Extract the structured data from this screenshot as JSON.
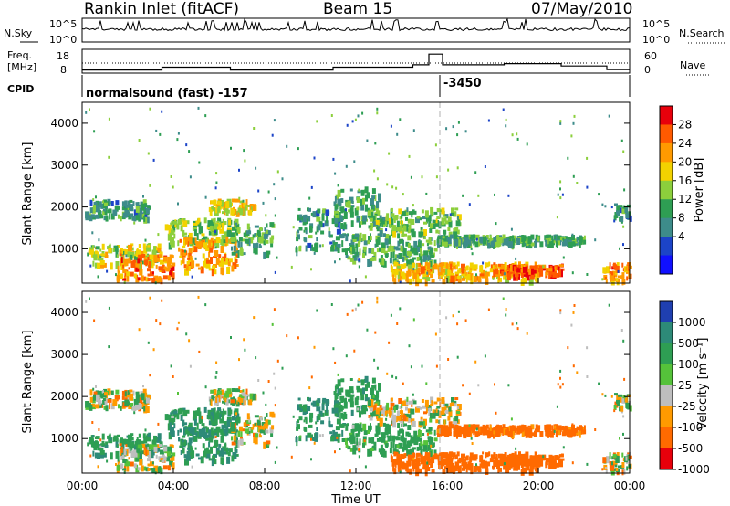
{
  "header": {
    "radar": "Rankin Inlet (fitACF)",
    "beam": "Beam 15",
    "date": "07/May/2010"
  },
  "noise_panel": {
    "left_label": "N.Sky",
    "right_label": "N.Search",
    "left_ticks": [
      "10^5",
      "10^0"
    ],
    "right_ticks": [
      "10^5",
      "10^0"
    ]
  },
  "freq_panel": {
    "left_label_1": "Freq.",
    "left_label_2": "[MHz]",
    "right_label": "Nave",
    "left_ticks": [
      "18",
      "8"
    ],
    "right_ticks": [
      "60",
      "0"
    ]
  },
  "cpid": {
    "label": "CPID",
    "program": "normalsound (fast) -157",
    "change": "-3450"
  },
  "power_panel": {
    "ylabel": "Slant Range [km]"
  },
  "velocity_panel": {
    "ylabel": "Slant Range [km]"
  },
  "power_colorbar": {
    "label": "Power [dB]",
    "ticks": [
      "28",
      "24",
      "20",
      "16",
      "12",
      "8",
      "4"
    ],
    "colors": [
      "#e8000b",
      "#ff5a00",
      "#ff9a00",
      "#f2d200",
      "#8ccf3c",
      "#2e9e53",
      "#3d8c8a",
      "#1c44c8",
      "#1010ff"
    ]
  },
  "velocity_colorbar": {
    "label": "Velocity [m s⁻¹]",
    "ticks": [
      "1000",
      "500",
      "100",
      "25",
      "-25",
      "-100",
      "-500",
      "-1000"
    ],
    "colors": [
      "#1f3fb0",
      "#2d8a78",
      "#2e9e53",
      "#55c23a",
      "#bebebe",
      "#ff9a00",
      "#ff6a00",
      "#e8000b"
    ]
  },
  "chart_data": {
    "type": "heatmap",
    "xlabel": "Time UT",
    "ylabel": "Slant Range [km]",
    "x_ticks": [
      "00:00",
      "04:00",
      "08:00",
      "12:00",
      "16:00",
      "20:00",
      "00:00"
    ],
    "x_range_hours": [
      0,
      24
    ],
    "y_ticks": [
      1000,
      2000,
      3000,
      4000
    ],
    "ylim": [
      180,
      4500
    ],
    "power_regions": [
      {
        "t0": 0.1,
        "t1": 2.9,
        "r0": 1750,
        "r1": 2200,
        "db": 10
      },
      {
        "t0": 0.2,
        "t1": 3.4,
        "r0": 650,
        "r1": 1150,
        "db": 18
      },
      {
        "t0": 1.5,
        "t1": 4.0,
        "r0": 300,
        "r1": 900,
        "db": 26
      },
      {
        "t0": 3.6,
        "t1": 6.8,
        "r0": 1150,
        "r1": 1750,
        "db": 16
      },
      {
        "t0": 4.2,
        "t1": 6.8,
        "r0": 500,
        "r1": 1300,
        "db": 24
      },
      {
        "t0": 5.5,
        "t1": 7.5,
        "r0": 1900,
        "r1": 2200,
        "db": 20
      },
      {
        "t0": 6.5,
        "t1": 8.3,
        "r0": 900,
        "r1": 1650,
        "db": 12
      },
      {
        "t0": 9.3,
        "t1": 11.5,
        "r0": 1000,
        "r1": 2000,
        "db": 10
      },
      {
        "t0": 11.0,
        "t1": 13.0,
        "r0": 1600,
        "r1": 2500,
        "db": 12
      },
      {
        "t0": 11.5,
        "t1": 15.5,
        "r0": 700,
        "r1": 1400,
        "db": 13
      },
      {
        "t0": 12.5,
        "t1": 16.5,
        "r0": 1400,
        "r1": 2000,
        "db": 14
      },
      {
        "t0": 13.5,
        "t1": 20.0,
        "r0": 280,
        "r1": 700,
        "db": 22
      },
      {
        "t0": 15.5,
        "t1": 22.0,
        "r0": 1150,
        "r1": 1350,
        "db": 12
      },
      {
        "t0": 18.0,
        "t1": 21.0,
        "r0": 400,
        "r1": 650,
        "db": 28
      },
      {
        "t0": 22.8,
        "t1": 24.0,
        "r0": 200,
        "r1": 700,
        "db": 26
      },
      {
        "t0": 23.3,
        "t1": 24.0,
        "r0": 1750,
        "r1": 2100,
        "db": 10
      }
    ],
    "velocity_regions": [
      {
        "t0": 0.1,
        "t1": 2.9,
        "r0": 1750,
        "r1": 2200,
        "v": 0
      },
      {
        "t0": 0.2,
        "t1": 3.4,
        "r0": 650,
        "r1": 1150,
        "v": 250
      },
      {
        "t0": 1.5,
        "t1": 4.0,
        "r0": 300,
        "r1": 900,
        "v": 0
      },
      {
        "t0": 3.6,
        "t1": 6.8,
        "r0": 1150,
        "r1": 1750,
        "v": 250
      },
      {
        "t0": 4.2,
        "t1": 6.8,
        "r0": 500,
        "r1": 1300,
        "v": 300
      },
      {
        "t0": 5.5,
        "t1": 7.5,
        "r0": 1900,
        "r1": 2200,
        "v": 0
      },
      {
        "t0": 6.5,
        "t1": 8.3,
        "r0": 900,
        "r1": 1650,
        "v": 0
      },
      {
        "t0": 9.3,
        "t1": 11.5,
        "r0": 1000,
        "r1": 2000,
        "v": 300
      },
      {
        "t0": 11.0,
        "t1": 13.0,
        "r0": 1600,
        "r1": 2500,
        "v": 200
      },
      {
        "t0": 11.5,
        "t1": 15.5,
        "r0": 700,
        "r1": 1400,
        "v": 150
      },
      {
        "t0": 12.5,
        "t1": 16.5,
        "r0": 1400,
        "r1": 2000,
        "v": 0
      },
      {
        "t0": 13.5,
        "t1": 20.0,
        "r0": 280,
        "r1": 700,
        "v": -300
      },
      {
        "t0": 15.5,
        "t1": 22.0,
        "r0": 1150,
        "r1": 1350,
        "v": -200
      },
      {
        "t0": 18.0,
        "t1": 21.0,
        "r0": 400,
        "r1": 650,
        "v": -250
      },
      {
        "t0": 22.8,
        "t1": 24.0,
        "r0": 200,
        "r1": 700,
        "v": 0
      },
      {
        "t0": 23.3,
        "t1": 24.0,
        "r0": 1750,
        "r1": 2100,
        "v": 0
      }
    ],
    "frequency_mhz": [
      {
        "t0": 0,
        "t1": 3.5,
        "f": 9.3
      },
      {
        "t0": 3.5,
        "t1": 6.5,
        "f": 10.5
      },
      {
        "t0": 6.5,
        "t1": 11,
        "f": 9.3
      },
      {
        "t0": 11,
        "t1": 14.5,
        "f": 10.5
      },
      {
        "t0": 14.5,
        "t1": 15.2,
        "f": 11.5
      },
      {
        "t0": 15.2,
        "t1": 15.8,
        "f": 16.0
      },
      {
        "t0": 15.8,
        "t1": 18.5,
        "f": 11.5
      },
      {
        "t0": 18.5,
        "t1": 21,
        "f": 12.0
      },
      {
        "t0": 21,
        "t1": 23,
        "f": 11.0
      },
      {
        "t0": 23,
        "t1": 24,
        "f": 9.5
      }
    ],
    "nave_level": 22,
    "cpid_change_hour": 15.7
  }
}
